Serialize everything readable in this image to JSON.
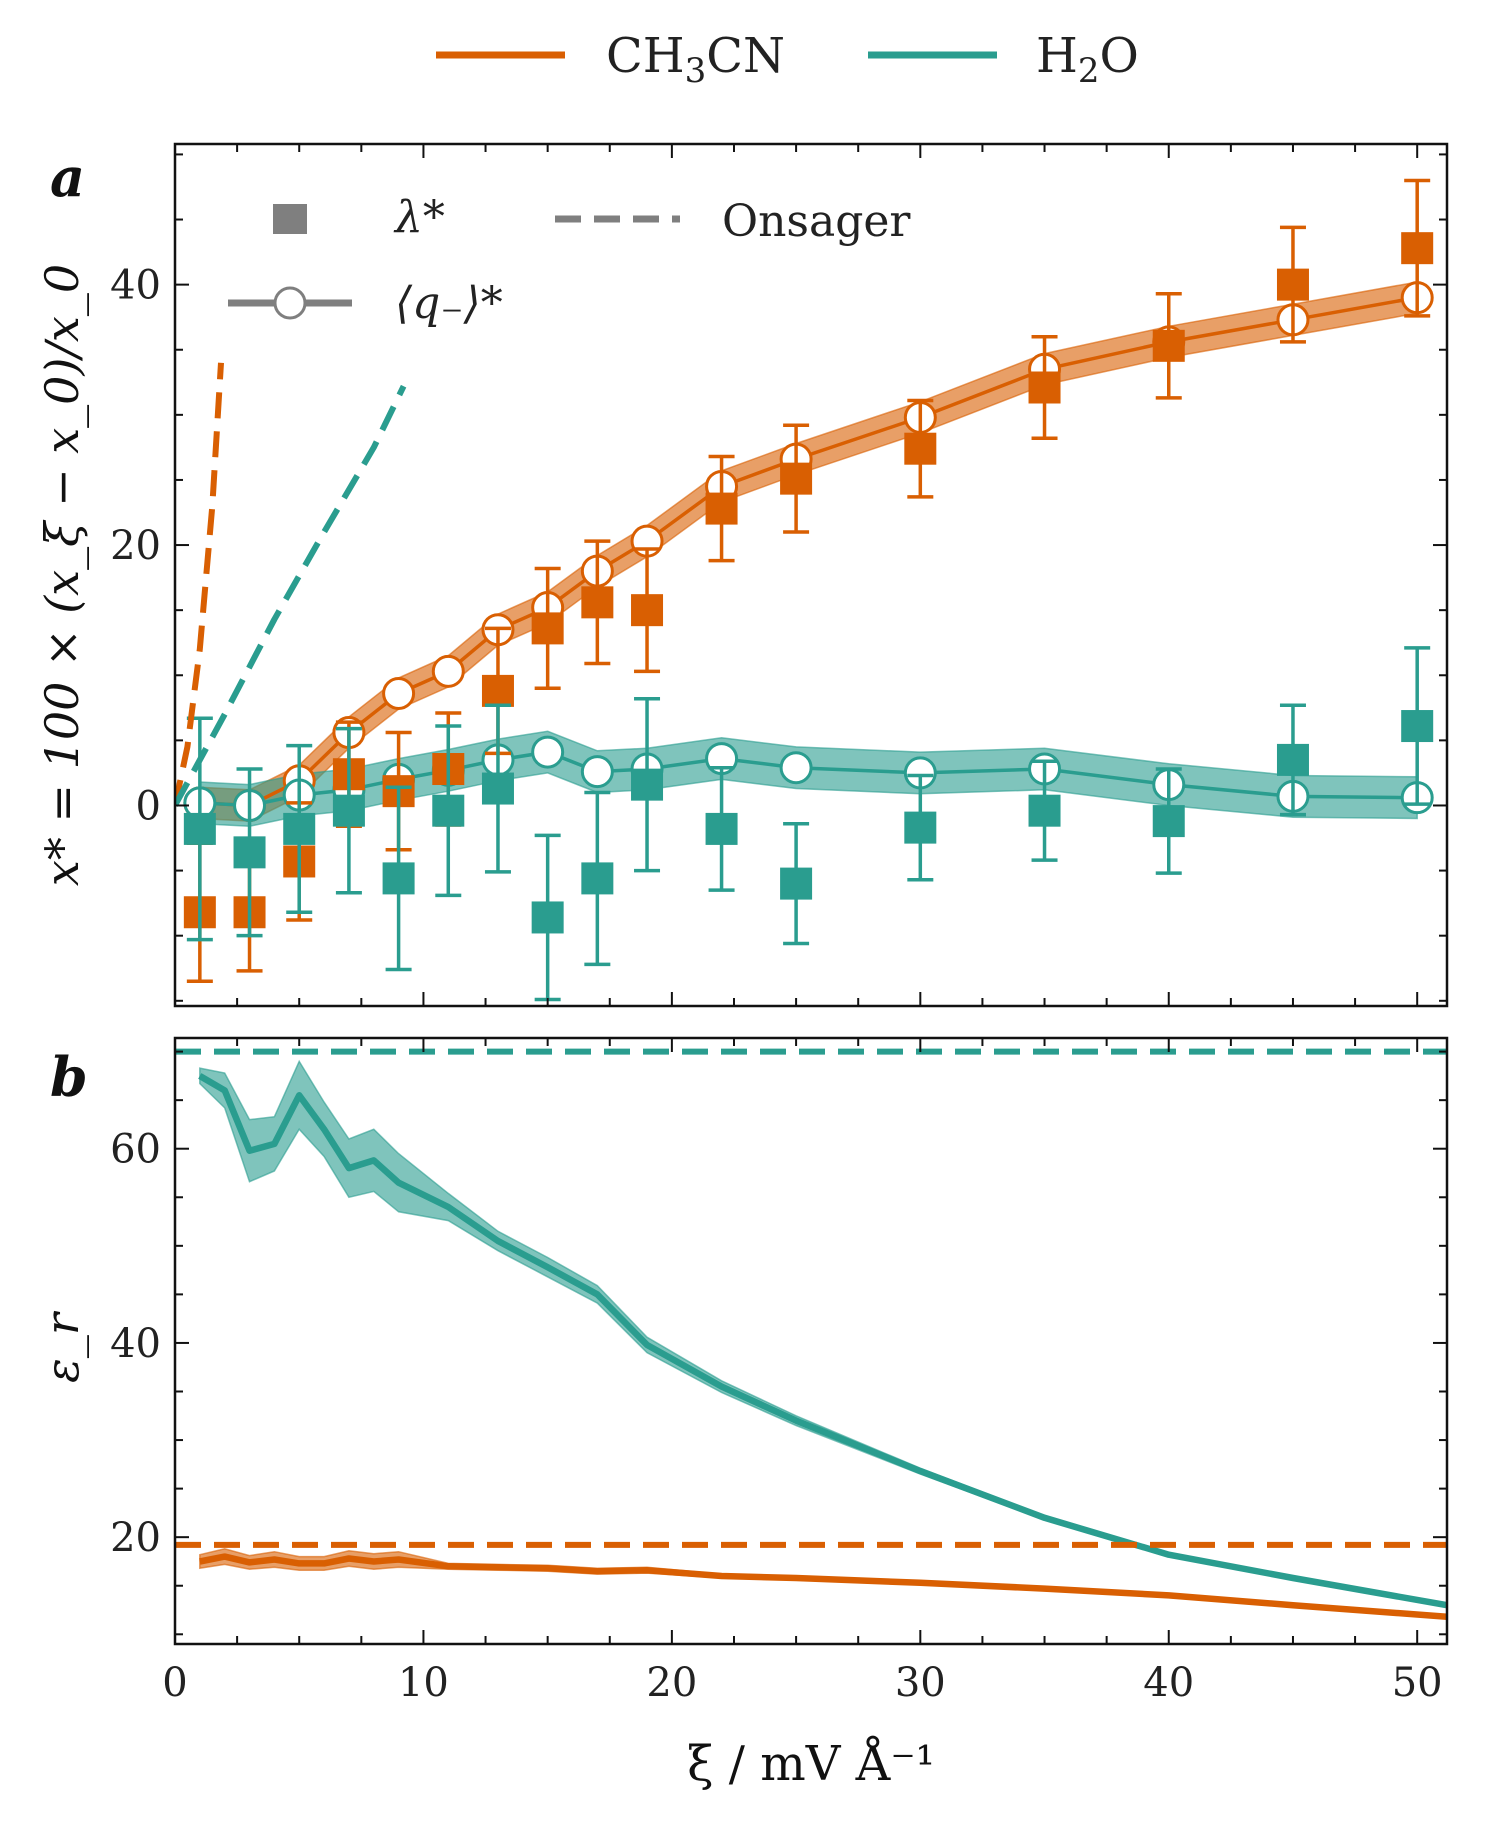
{
  "figure_legend": [
    {
      "label": "CH",
      "sub": "3",
      "label_tail": "CN",
      "color": "#d95f02"
    },
    {
      "label": "H",
      "sub": "2",
      "label_tail": "O",
      "color": "#2a9d8f"
    }
  ],
  "chart_data": [
    {
      "type": "line",
      "panel_label": "a",
      "ylabel": "x* = 100 × (x_ξ − x_0)/x_0",
      "xlabel": "",
      "xlim": [
        0,
        51.2
      ],
      "ylim": [
        -15.4,
        50.8
      ],
      "xticks": [
        0,
        10,
        20,
        30,
        40,
        50
      ],
      "yticks": [
        0,
        20,
        40
      ],
      "inner_legend": {
        "lambda_label": "λ*",
        "q_label": "⟨q₋⟩*",
        "onsager_label": "Onsager"
      },
      "series": [
        {
          "name": "CH3CN ⟨q−⟩*",
          "color": "#d95f02",
          "x": [
            1,
            3,
            5,
            7,
            9,
            11,
            13,
            15,
            17,
            19,
            22,
            25,
            30,
            35,
            40,
            45,
            50
          ],
          "values": [
            0.2,
            0.0,
            1.9,
            5.6,
            8.6,
            10.3,
            13.5,
            15.2,
            18.0,
            20.3,
            24.5,
            26.6,
            29.8,
            33.5,
            35.6,
            37.3,
            39.0
          ],
          "band": 1.2
        },
        {
          "name": "H2O ⟨q−⟩*",
          "color": "#2a9d8f",
          "x": [
            1,
            3,
            5,
            7,
            9,
            11,
            13,
            15,
            17,
            19,
            22,
            25,
            30,
            35,
            40,
            45,
            50
          ],
          "values": [
            0.2,
            0.0,
            0.8,
            1.2,
            2.0,
            2.7,
            3.5,
            4.1,
            2.6,
            2.8,
            3.6,
            2.9,
            2.5,
            2.8,
            1.6,
            0.7,
            0.6
          ],
          "band": 1.6
        },
        {
          "name": "CH3CN λ*",
          "color": "#d95f02",
          "x": [
            1,
            3,
            5,
            7,
            9,
            11,
            13,
            15,
            17,
            19,
            22,
            25,
            30,
            35,
            40,
            45,
            50
          ],
          "values": [
            -8.2,
            -8.2,
            -4.3,
            2.4,
            1.1,
            2.8,
            8.8,
            13.6,
            15.6,
            15.0,
            22.8,
            25.1,
            27.4,
            32.1,
            35.3,
            40.0,
            42.8
          ],
          "err": [
            5.3,
            4.5,
            4.5,
            4.0,
            4.5,
            4.3,
            4.8,
            4.6,
            4.7,
            4.7,
            4.0,
            4.1,
            3.7,
            3.9,
            4.0,
            4.4,
            5.2
          ]
        },
        {
          "name": "H2O λ*",
          "color": "#2a9d8f",
          "x": [
            1,
            3,
            5,
            7,
            9,
            11,
            13,
            15,
            17,
            19,
            22,
            25,
            30,
            35,
            40,
            45,
            50
          ],
          "values": [
            -1.8,
            -3.6,
            -1.8,
            -0.4,
            -5.6,
            -0.4,
            1.3,
            -8.6,
            -5.6,
            1.6,
            -1.8,
            -6.0,
            -1.7,
            -0.4,
            -1.2,
            3.5,
            6.1
          ],
          "err": [
            8.5,
            6.4,
            6.4,
            6.3,
            7.0,
            6.5,
            6.4,
            6.3,
            6.6,
            6.6,
            4.7,
            4.6,
            4.0,
            3.8,
            4.0,
            4.2,
            6.0
          ]
        },
        {
          "name": "CH3CN Onsager",
          "color": "#d95f02",
          "dashed": true,
          "x": [
            0,
            0.5,
            1.0,
            1.5,
            1.85
          ],
          "values": [
            0,
            4.5,
            12.0,
            23.0,
            34.0
          ]
        },
        {
          "name": "H2O Onsager",
          "color": "#2a9d8f",
          "dashed": true,
          "x": [
            0,
            2,
            4,
            6,
            8,
            9.2
          ],
          "values": [
            0,
            7.0,
            14.3,
            21.0,
            27.5,
            32.2
          ]
        }
      ]
    },
    {
      "type": "line",
      "panel_label": "b",
      "ylabel": "ε_r",
      "xlabel": "ξ / mV Å⁻¹",
      "xlim": [
        0,
        51.2
      ],
      "ylim": [
        9,
        71.4
      ],
      "xticks": [
        0,
        10,
        20,
        30,
        40,
        50
      ],
      "yticks": [
        20,
        40,
        60
      ],
      "series": [
        {
          "name": "H2O ε_r",
          "color": "#2a9d8f",
          "x": [
            1,
            2,
            3,
            4,
            5,
            6,
            7,
            8,
            9,
            11,
            13,
            15,
            17,
            19,
            22,
            25,
            30,
            35,
            40,
            45,
            51.2
          ],
          "values": [
            67.5,
            66.0,
            59.8,
            60.5,
            65.5,
            62.0,
            58.0,
            58.8,
            56.5,
            54.0,
            50.5,
            47.8,
            45.0,
            39.8,
            35.5,
            32.0,
            26.8,
            22.0,
            18.2,
            15.8,
            13.0
          ],
          "band": [
            0.8,
            1.8,
            3.2,
            2.8,
            3.5,
            2.8,
            3.0,
            3.2,
            3.0,
            1.4,
            1.0,
            1.0,
            0.9,
            0.8,
            0.6,
            0.5,
            0.3,
            0.2,
            0.2,
            0.2,
            0.2
          ]
        },
        {
          "name": "CH3CN ε_r",
          "color": "#d95f02",
          "x": [
            1,
            2,
            3,
            4,
            5,
            6,
            7,
            8,
            9,
            11,
            13,
            15,
            17,
            19,
            22,
            25,
            30,
            35,
            40,
            45,
            51.2
          ],
          "values": [
            17.5,
            18.0,
            17.4,
            17.7,
            17.3,
            17.3,
            17.8,
            17.5,
            17.7,
            17.0,
            16.9,
            16.8,
            16.5,
            16.6,
            16.0,
            15.8,
            15.3,
            14.7,
            14.0,
            13.0,
            11.8
          ],
          "band": [
            0.7,
            0.8,
            0.7,
            0.8,
            0.7,
            0.7,
            0.8,
            0.8,
            0.8,
            0.3,
            0.3,
            0.3,
            0.3,
            0.3,
            0.2,
            0.2,
            0.2,
            0.2,
            0.2,
            0.2,
            0.2
          ]
        },
        {
          "name": "H2O static",
          "color": "#2a9d8f",
          "dashed": true,
          "x": [
            0,
            51.2
          ],
          "values": [
            70.0,
            70.0
          ]
        },
        {
          "name": "CH3CN static",
          "color": "#d95f02",
          "dashed": true,
          "x": [
            0,
            51.2
          ],
          "values": [
            19.2,
            19.2
          ]
        }
      ]
    }
  ]
}
